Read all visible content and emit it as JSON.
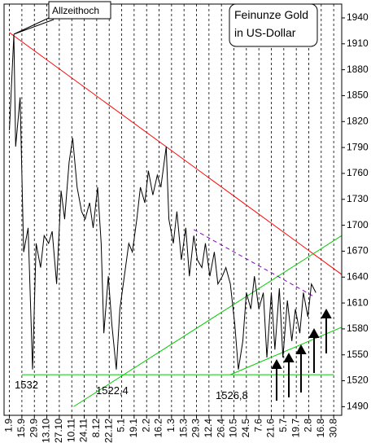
{
  "chart_data": {
    "type": "line",
    "title_lines": [
      "Feinunze Gold",
      "in US-Dollar"
    ],
    "annotations": [
      "Allzeithoch",
      "1532",
      "1522,4",
      "1526,8"
    ],
    "xlim": [
      -6,
      373
    ],
    "xticks": [
      {
        "value": 0,
        "label": "1.9"
      },
      {
        "value": 14,
        "label": "15.9"
      },
      {
        "value": 28,
        "label": "29.9"
      },
      {
        "value": 42,
        "label": "13.10"
      },
      {
        "value": 56,
        "label": "27.10"
      },
      {
        "value": 70,
        "label": "10.11"
      },
      {
        "value": 84,
        "label": "24.11"
      },
      {
        "value": 98,
        "label": "8.12"
      },
      {
        "value": 112,
        "label": "22.12"
      },
      {
        "value": 126,
        "label": "5.1"
      },
      {
        "value": 140,
        "label": "19.1"
      },
      {
        "value": 154,
        "label": "2.2"
      },
      {
        "value": 168,
        "label": "16.2"
      },
      {
        "value": 182,
        "label": "1.3"
      },
      {
        "value": 196,
        "label": "15.3"
      },
      {
        "value": 210,
        "label": "29.3"
      },
      {
        "value": 224,
        "label": "12.4"
      },
      {
        "value": 238,
        "label": "26.4"
      },
      {
        "value": 252,
        "label": "10.5"
      },
      {
        "value": 266,
        "label": "24.5"
      },
      {
        "value": 280,
        "label": "7.6"
      },
      {
        "value": 294,
        "label": "21.6"
      },
      {
        "value": 308,
        "label": "5.7"
      },
      {
        "value": 322,
        "label": "19.7"
      },
      {
        "value": 336,
        "label": "2.8"
      },
      {
        "value": 350,
        "label": "16.8"
      },
      {
        "value": 364,
        "label": "30.8"
      }
    ],
    "ylim": [
      1480,
      1956
    ],
    "yticks": [
      1490,
      1520,
      1550,
      1580,
      1610,
      1640,
      1670,
      1700,
      1730,
      1760,
      1790,
      1820,
      1850,
      1880,
      1910,
      1940
    ],
    "grid": true,
    "series": [
      {
        "color": "#000000",
        "x": [
          0,
          5,
          7,
          12,
          16,
          21,
          26,
          30,
          35,
          39,
          44,
          48,
          53,
          58,
          62,
          67,
          71,
          76,
          81,
          85,
          90,
          94,
          99,
          103,
          106,
          111,
          115,
          120,
          124,
          129,
          134,
          138,
          143,
          147,
          152,
          156,
          161,
          166,
          170,
          176,
          179,
          184,
          188,
          193,
          198,
          202,
          207,
          211,
          216,
          220,
          225,
          230,
          234,
          239,
          243,
          248,
          253,
          257,
          262,
          266,
          271,
          275,
          280,
          285,
          289,
          294,
          298,
          303,
          307,
          312,
          317,
          321,
          326,
          330,
          335,
          339,
          344
        ],
        "values": [
          1810,
          1921,
          1791,
          1848,
          1669,
          1697,
          1533,
          1679,
          1651,
          1688,
          1679,
          1693,
          1632,
          1740,
          1707,
          1773,
          1801,
          1744,
          1716,
          1707,
          1726,
          1697,
          1744,
          1679,
          1575,
          1641,
          1585,
          1533,
          1603,
          1641,
          1679,
          1669,
          1707,
          1744,
          1726,
          1763,
          1735,
          1758,
          1744,
          1791,
          1707,
          1679,
          1716,
          1660,
          1697,
          1641,
          1688,
          1660,
          1651,
          1679,
          1641,
          1669,
          1632,
          1641,
          1651,
          1632,
          1585,
          1533,
          1566,
          1622,
          1603,
          1641,
          1603,
          1622,
          1547,
          1622,
          1556,
          1627,
          1547,
          1613,
          1566,
          1603,
          1575,
          1622,
          1594,
          1632,
          1622
        ]
      }
    ],
    "trend_lines": [
      {
        "color": "#ff0000",
        "dashed": false,
        "x": [
          0,
          373
        ],
        "values": [
          1923,
          1643
        ]
      },
      {
        "color": "#00cc00",
        "dashed": false,
        "x": [
          72,
          373
        ],
        "values": [
          1490,
          1688
        ]
      },
      {
        "color": "#00cc00",
        "dashed": false,
        "x": [
          14,
          364
        ],
        "values": [
          1527,
          1527
        ]
      },
      {
        "color": "#00cc00",
        "dashed": false,
        "x": [
          248,
          373
        ],
        "values": [
          1527,
          1582
        ]
      },
      {
        "color": "#8000c0",
        "dashed": true,
        "x": [
          207,
          341
        ],
        "values": [
          1695,
          1618
        ]
      }
    ]
  }
}
